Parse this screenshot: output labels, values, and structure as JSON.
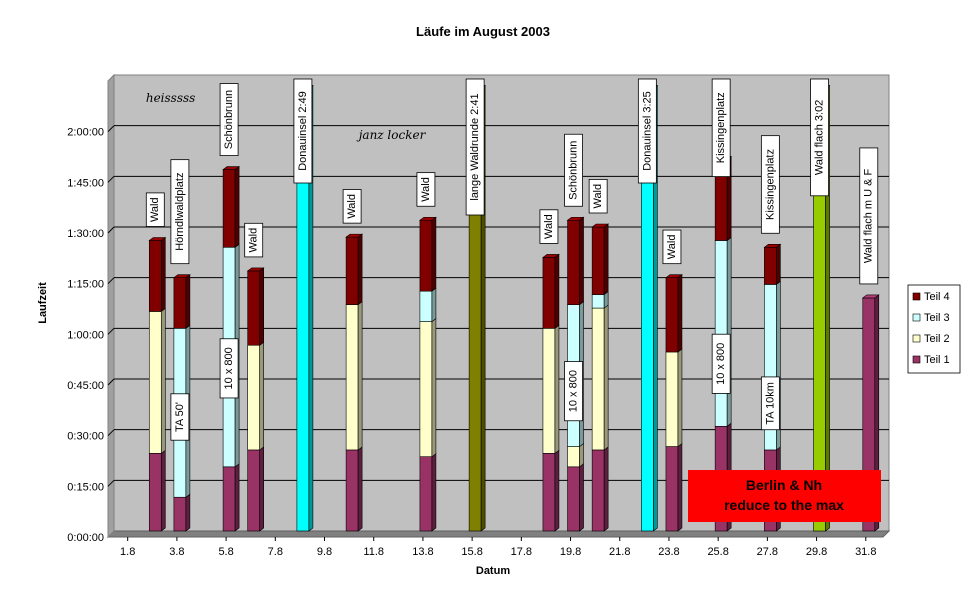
{
  "chart_data": {
    "type": "bar",
    "stacked": true,
    "title": "Läufe im August 2003",
    "xlabel": "Datum",
    "ylabel": "Laufzeit",
    "y_unit": "minutes",
    "ylim": [
      0,
      135
    ],
    "y_ticks": [
      {
        "value": 0,
        "label": "0:00:00"
      },
      {
        "value": 15,
        "label": "0:15:00"
      },
      {
        "value": 30,
        "label": "0:30:00"
      },
      {
        "value": 45,
        "label": "0:45:00"
      },
      {
        "value": 60,
        "label": "1:00:00"
      },
      {
        "value": 75,
        "label": "1:15:00"
      },
      {
        "value": 90,
        "label": "1:30:00"
      },
      {
        "value": 105,
        "label": "1:45:00"
      },
      {
        "value": 120,
        "label": "2:00:00"
      }
    ],
    "x_range": [
      1,
      32.5
    ],
    "x_ticks": [
      {
        "value": 1.8,
        "label": "1.8"
      },
      {
        "value": 3.8,
        "label": "3.8"
      },
      {
        "value": 5.8,
        "label": "5.8"
      },
      {
        "value": 7.8,
        "label": "7.8"
      },
      {
        "value": 9.8,
        "label": "9.8"
      },
      {
        "value": 11.8,
        "label": "11.8"
      },
      {
        "value": 13.8,
        "label": "13.8"
      },
      {
        "value": 15.8,
        "label": "15.8"
      },
      {
        "value": 17.8,
        "label": "17.8"
      },
      {
        "value": 19.8,
        "label": "19.8"
      },
      {
        "value": 21.8,
        "label": "21.8"
      },
      {
        "value": 23.8,
        "label": "23.8"
      },
      {
        "value": 25.8,
        "label": "25.8"
      },
      {
        "value": 27.8,
        "label": "27.8"
      },
      {
        "value": 29.8,
        "label": "29.8"
      },
      {
        "value": 31.8,
        "label": "31.8"
      }
    ],
    "grid": true,
    "legend_position": "right",
    "series_colors": {
      "Teil 1": "#993366",
      "Teil 2": "#FFFFCC",
      "Teil 3": "#CCFFFF",
      "Teil 4": "#800000"
    },
    "legend": [
      "Teil 4",
      "Teil 3",
      "Teil 2",
      "Teil 1"
    ],
    "runs": [
      {
        "day": 2.8,
        "segments": [
          {
            "series": "Teil 1",
            "value": 23
          },
          {
            "series": "Teil 2",
            "value": 42
          },
          {
            "series": "Teil 4",
            "value": 21
          }
        ],
        "label": "Wald"
      },
      {
        "day": 3.8,
        "segments": [
          {
            "series": "Teil 1",
            "value": 10
          },
          {
            "series": "Teil 3",
            "value": 50
          },
          {
            "series": "Teil 4",
            "value": 15
          }
        ],
        "label": "Hörndlwaldplatz",
        "label2": "TA 50'"
      },
      {
        "day": 5.8,
        "segments": [
          {
            "series": "Teil 1",
            "value": 19
          },
          {
            "series": "Teil 3",
            "value": 65
          },
          {
            "series": "Teil 4",
            "value": 23
          }
        ],
        "label": "Schönbrunn",
        "label2": "10 x 800"
      },
      {
        "day": 6.8,
        "segments": [
          {
            "series": "Teil 1",
            "value": 24
          },
          {
            "series": "Teil 2",
            "value": 31
          },
          {
            "series": "Teil 4",
            "value": 22
          }
        ],
        "label": "Wald"
      },
      {
        "day": 8.8,
        "segments": [
          {
            "series": "Donauinsel",
            "value": 131,
            "color": "#00FFFF"
          }
        ],
        "label": "Donauinsel 2:49"
      },
      {
        "day": 10.8,
        "segments": [
          {
            "series": "Teil 1",
            "value": 24
          },
          {
            "series": "Teil 2",
            "value": 43
          },
          {
            "series": "Teil 4",
            "value": 20
          }
        ],
        "label": "Wald"
      },
      {
        "day": 13.8,
        "segments": [
          {
            "series": "Teil 1",
            "value": 22
          },
          {
            "series": "Teil 2",
            "value": 40
          },
          {
            "series": "Teil 3",
            "value": 9
          },
          {
            "series": "Teil 4",
            "value": 21
          }
        ],
        "label": "Wald"
      },
      {
        "day": 15.8,
        "segments": [
          {
            "series": "Waldrunde",
            "value": 131,
            "color": "#808000"
          }
        ],
        "label": "lange Waldrunde 2:41"
      },
      {
        "day": 18.8,
        "segments": [
          {
            "series": "Teil 1",
            "value": 23
          },
          {
            "series": "Teil 2",
            "value": 37
          },
          {
            "series": "Teil 4",
            "value": 21
          }
        ],
        "label": "Wald"
      },
      {
        "day": 19.8,
        "segments": [
          {
            "series": "Teil 1",
            "value": 19
          },
          {
            "series": "Teil 2",
            "value": 6
          },
          {
            "series": "Teil 3",
            "value": 42
          },
          {
            "series": "Teil 4",
            "value": 25
          }
        ],
        "label": "Schönbrunn",
        "label2": "10 x 800"
      },
      {
        "day": 20.8,
        "segments": [
          {
            "series": "Teil 1",
            "value": 24
          },
          {
            "series": "Teil 2",
            "value": 42
          },
          {
            "series": "Teil 3",
            "value": 4
          },
          {
            "series": "Teil 4",
            "value": 20
          }
        ],
        "label": "Wald"
      },
      {
        "day": 22.8,
        "segments": [
          {
            "series": "Donauinsel",
            "value": 131,
            "color": "#00FFFF"
          }
        ],
        "label": "Donauinsel 3:25"
      },
      {
        "day": 23.8,
        "segments": [
          {
            "series": "Teil 1",
            "value": 25
          },
          {
            "series": "Teil 2",
            "value": 28
          },
          {
            "series": "Teil 4",
            "value": 22
          }
        ],
        "label": "Wald"
      },
      {
        "day": 25.8,
        "segments": [
          {
            "series": "Teil 1",
            "value": 31
          },
          {
            "series": "Teil 3",
            "value": 55
          },
          {
            "series": "Teil 4",
            "value": 24
          }
        ],
        "label": "Kissingenplatz",
        "label2": "10 x 800"
      },
      {
        "day": 27.8,
        "segments": [
          {
            "series": "Teil 1",
            "value": 24
          },
          {
            "series": "Teil 3",
            "value": 49
          },
          {
            "series": "Teil 4",
            "value": 11
          }
        ],
        "label": "Kissingenplatz",
        "label2": "TA 10km"
      },
      {
        "day": 29.8,
        "segments": [
          {
            "series": "Wald flach",
            "value": 131,
            "color": "#99CC00"
          }
        ],
        "label": "Wald  flach  3:02"
      },
      {
        "day": 31.8,
        "segments": [
          {
            "series": "Teil 1",
            "value": 69
          }
        ],
        "label": "Wald  flach  m U & F"
      }
    ],
    "annotations": [
      {
        "text": "heisssss",
        "day": 3.3,
        "value": 127
      },
      {
        "text": "janz locker",
        "day": 12.3,
        "value": 116
      }
    ],
    "banner": {
      "lines": [
        "Berlin & Nh",
        "reduce to the max"
      ],
      "color": "#FF0000"
    }
  }
}
